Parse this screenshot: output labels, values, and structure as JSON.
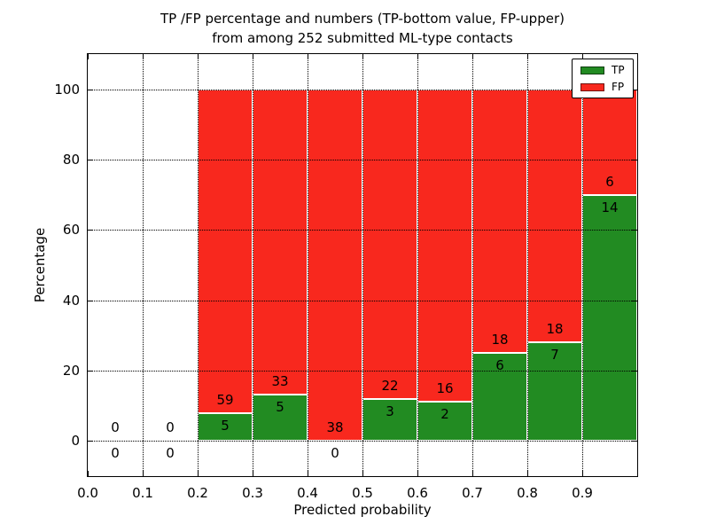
{
  "figure": {
    "title_line1": "TP /FP percentage and numbers (TP-bottom value, FP-upper)",
    "title_line2": "from among 252 submitted ML-type contacts"
  },
  "chart_data": {
    "type": "bar",
    "stacked": true,
    "title": "TP /FP percentage and numbers (TP-bottom value, FP-upper) from among 252 submitted ML-type contacts",
    "xlabel": "Predicted probability",
    "ylabel": "Percentage",
    "total_contacts": 252,
    "bin_width": 0.1,
    "xlim": [
      0.0,
      1.0
    ],
    "ylim": [
      -10,
      110
    ],
    "grid": "dotted, drawn above bars",
    "x_tick_labels": [
      "0.0",
      "0.1",
      "0.2",
      "0.3",
      "0.4",
      "0.5",
      "0.6",
      "0.7",
      "0.8",
      "0.9"
    ],
    "y_tick_values": [
      0,
      20,
      40,
      60,
      80,
      100
    ],
    "y_tick_labels": [
      "0",
      "20",
      "40",
      "60",
      "80",
      "100"
    ],
    "legend": {
      "position": "upper right",
      "entries": [
        {
          "label": "TP",
          "color": "#228b22"
        },
        {
          "label": "FP",
          "color": "#f8281e"
        }
      ]
    },
    "colors": {
      "tp": "#228b22",
      "fp": "#f8281e",
      "edge": "#ffffff"
    },
    "bins": [
      {
        "x_start": 0.0,
        "tp": 0,
        "fp": 0
      },
      {
        "x_start": 0.1,
        "tp": 0,
        "fp": 0
      },
      {
        "x_start": 0.2,
        "tp": 5,
        "fp": 59
      },
      {
        "x_start": 0.3,
        "tp": 5,
        "fp": 33
      },
      {
        "x_start": 0.4,
        "tp": 0,
        "fp": 38
      },
      {
        "x_start": 0.5,
        "tp": 3,
        "fp": 22
      },
      {
        "x_start": 0.6,
        "tp": 2,
        "fp": 16
      },
      {
        "x_start": 0.7,
        "tp": 6,
        "fp": 18
      },
      {
        "x_start": 0.8,
        "tp": 7,
        "fp": 18
      },
      {
        "x_start": 0.9,
        "tp": 14,
        "fp": 6
      }
    ],
    "bar_percentages_tp": [
      null,
      null,
      7.8,
      13.2,
      0.0,
      12.0,
      11.1,
      25.0,
      28.0,
      70.0
    ]
  }
}
